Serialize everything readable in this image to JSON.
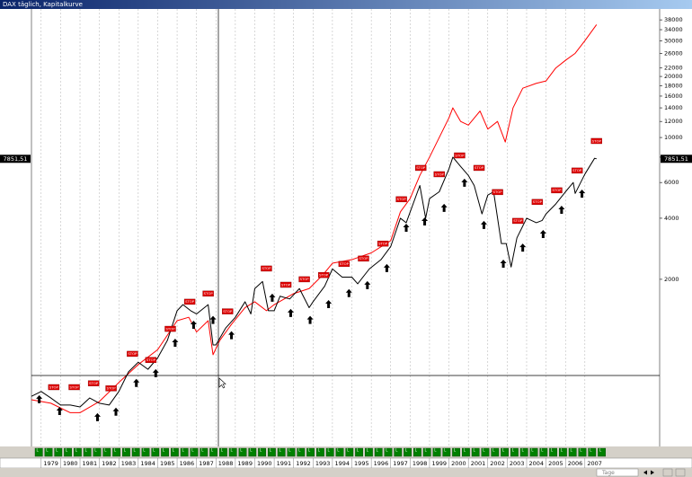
{
  "chart_data": {
    "type": "line",
    "title": "DAX täglich, Kapitalkurve",
    "log_scale": true,
    "grid": true,
    "xlim": [
      1978.5,
      2010.85
    ],
    "ylim": [
      300,
      43000
    ],
    "xticks": [
      {
        "value": 1979,
        "label": "1979"
      },
      {
        "value": 1980,
        "label": "1980"
      },
      {
        "value": 1981,
        "label": "1981"
      },
      {
        "value": 1982,
        "label": "1982"
      },
      {
        "value": 1983,
        "label": "1983"
      },
      {
        "value": 1984,
        "label": "1984"
      },
      {
        "value": 1985,
        "label": "1985"
      },
      {
        "value": 1986,
        "label": "1986"
      },
      {
        "value": 1987,
        "label": "1987"
      },
      {
        "value": 1988,
        "label": "1988"
      },
      {
        "value": 1989,
        "label": "1989"
      },
      {
        "value": 1990,
        "label": "1990"
      },
      {
        "value": 1991,
        "label": "1991"
      },
      {
        "value": 1992,
        "label": "1992"
      },
      {
        "value": 1993,
        "label": "1993"
      },
      {
        "value": 1994,
        "label": "1994"
      },
      {
        "value": 1995,
        "label": "1995"
      },
      {
        "value": 1996,
        "label": "1996"
      },
      {
        "value": 1997,
        "label": "1997"
      },
      {
        "value": 1998,
        "label": "1998"
      },
      {
        "value": 1999,
        "label": "1999"
      },
      {
        "value": 2000,
        "label": "2000"
      },
      {
        "value": 2001,
        "label": "2001"
      },
      {
        "value": 2002,
        "label": "2002"
      },
      {
        "value": 2003,
        "label": "2003"
      },
      {
        "value": 2004,
        "label": "2004"
      },
      {
        "value": 2005,
        "label": "2005"
      },
      {
        "value": 2006,
        "label": "2006"
      },
      {
        "value": 2007,
        "label": "2007"
      }
    ],
    "yticks": [
      2000,
      4000,
      6000,
      8000,
      10000,
      12000,
      14000,
      16000,
      18000,
      20000,
      22000,
      26000,
      30000,
      34000,
      38000
    ],
    "series": [
      {
        "color": "#ff0000",
        "x": [
          1978.5,
          1979.5,
          1980.5,
          1981,
          1982,
          1983,
          1984,
          1985,
          1986,
          1986.6,
          1987,
          1987.6,
          1987.85,
          1988.2,
          1988.8,
          1989.5,
          1990,
          1990.6,
          1991,
          1992,
          1992.8,
          1993.5,
          1994,
          1995,
          1996,
          1997,
          1997.5,
          1998,
          1998.5,
          1999,
          1999.5,
          2000,
          2000.2,
          2000.6,
          2001,
          2001.6,
          2002,
          2002.5,
          2002.9,
          2003.3,
          2003.8,
          2004.5,
          2005,
          2005.5,
          2006,
          2006.5,
          2007,
          2007.6
        ],
        "values": [
          510,
          490,
          440,
          440,
          500,
          620,
          760,
          900,
          1250,
          1300,
          1100,
          1250,
          850,
          1000,
          1200,
          1450,
          1550,
          1400,
          1500,
          1700,
          1800,
          2100,
          2400,
          2500,
          2700,
          3100,
          4300,
          5000,
          6500,
          8000,
          10000,
          12500,
          14000,
          12000,
          11500,
          13500,
          11000,
          12000,
          9500,
          14000,
          17500,
          18500,
          19000,
          22000,
          24000,
          26000,
          30000,
          36000
        ]
      },
      {
        "color": "#000000",
        "x": [
          1978.5,
          1979,
          1979.5,
          1980,
          1980.5,
          1981,
          1981.5,
          1982,
          1982.5,
          1983,
          1983.5,
          1984,
          1984.5,
          1985,
          1985.5,
          1986,
          1986.3,
          1986.7,
          1987,
          1987.6,
          1987.85,
          1988,
          1988.5,
          1989,
          1989.5,
          1989.8,
          1990,
          1990.4,
          1990.7,
          1991,
          1991.3,
          1991.8,
          1992.3,
          1992.8,
          1993,
          1993.6,
          1994,
          1994.5,
          1995,
          1995.3,
          1995.9,
          1996.5,
          1997,
          1997.5,
          1997.8,
          1998.5,
          1998.8,
          1999,
          1999.5,
          2000,
          2000.2,
          2000.6,
          2001,
          2001.3,
          2001.7,
          2002,
          2002.3,
          2002.7,
          2002.95,
          2003.2,
          2003.5,
          2004,
          2004.5,
          2004.8,
          2005,
          2005.5,
          2006,
          2006.4,
          2006.5,
          2007,
          2007.5,
          2007.6
        ],
        "values": [
          530,
          560,
          520,
          480,
          480,
          470,
          520,
          490,
          480,
          560,
          700,
          780,
          720,
          820,
          1000,
          1400,
          1500,
          1400,
          1350,
          1500,
          950,
          950,
          1150,
          1300,
          1550,
          1350,
          1800,
          1950,
          1400,
          1400,
          1650,
          1600,
          1800,
          1450,
          1550,
          1850,
          2250,
          2050,
          2050,
          1900,
          2250,
          2500,
          2900,
          4000,
          3800,
          5800,
          4000,
          5000,
          5400,
          7000,
          8000,
          7200,
          6500,
          5800,
          4200,
          5200,
          5400,
          3000,
          3000,
          2300,
          3200,
          4000,
          3800,
          3900,
          4200,
          4700,
          5400,
          6000,
          5300,
          6600,
          7900,
          7851.51
        ]
      }
    ],
    "last_value": {
      "value": 7851.51,
      "label": "7851,51"
    },
    "stops": {
      "label": "STOP",
      "x": [
        1979.65,
        1980.7,
        1981.7,
        1982.6,
        1983.7,
        1984.65,
        1985.65,
        1986.65,
        1987.6,
        1988.6,
        1990.6,
        1991.6,
        1992.55,
        1993.55,
        1994.6,
        1995.6,
        1996.6,
        1997.55,
        1998.55,
        1999.5,
        2000.55,
        2001.55,
        2002.5,
        2003.55,
        2004.55,
        2005.55,
        2006.6,
        2007.6
      ],
      "values": [
        588,
        588,
        614,
        580,
        858,
        800,
        1140,
        1550,
        1700,
        1390,
        2260,
        1880,
        2000,
        2100,
        2380,
        2530,
        3000,
        4960,
        7080,
        6590,
        8160,
        7080,
        5380,
        3880,
        4810,
        5490,
        6870,
        9610
      ]
    },
    "buy_signals": {
      "x": [
        1978.9,
        1979.95,
        1981.9,
        1982.85,
        1983.9,
        1984.9,
        1985.9,
        1986.85,
        1987.85,
        1988.8,
        1990.9,
        1991.85,
        1992.85,
        1993.8,
        1994.85,
        1995.8,
        1996.8,
        1997.8,
        1998.75,
        1999.75,
        2000.8,
        2001.8,
        2002.8,
        2003.8,
        2004.85,
        2005.8,
        2006.85
      ],
      "values": [
        537,
        470,
        438,
        466,
        646,
        722,
        1020,
        1250,
        1320,
        1110,
        1700,
        1430,
        1320,
        1580,
        1790,
        1960,
        2380,
        3760,
        4040,
        4710,
        6270,
        3880,
        2500,
        3000,
        3500,
        4610,
        5540
      ]
    },
    "position_label": "L",
    "period_label": "Tage"
  }
}
